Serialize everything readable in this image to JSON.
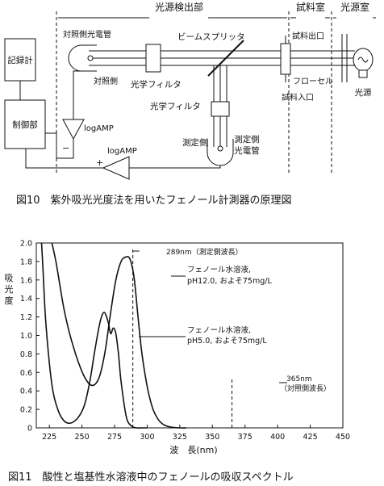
{
  "fig10": {
    "sections": [
      "光源検出部",
      "試料室",
      "光源室"
    ],
    "recorder": "記録計",
    "controller": "制御部",
    "ref_detector": "対照側光電管",
    "ref_side": "対照側",
    "beam_splitter": "ビームスプリッタ",
    "filter1": "光学フィルタ",
    "filter2": "光学フィルタ",
    "sample_outlet": "試料出口",
    "flow_cell": "フローセル",
    "sample_inlet": "試料入口",
    "light_source": "光源",
    "meas_side": "測定側",
    "meas_detector": [
      "測定側",
      "光電管"
    ],
    "amp1": "logAMP",
    "amp2": "logAMP",
    "minus": "−",
    "plus": "+",
    "caption": "図10　紫外吸光光度法を用いたフェノール計測器の原理図"
  },
  "fig11": {
    "caption": "図11　酸性と塩基性水溶液中のフェノールの吸収スペクトル",
    "ylabel": [
      "吸",
      "光",
      "度"
    ],
    "xlabel": "波　長(nm)",
    "ann_289": "289nm（測定側波長）",
    "ann_365": [
      "365nm",
      "（対照側波長）"
    ],
    "ann_ph12": [
      "フェノール水溶液,",
      "pH12.0, およそ75mg/L"
    ],
    "ann_ph5": [
      "フェノール水溶液,",
      "pH5.0, およそ75mg/L"
    ]
  },
  "chart_data": {
    "type": "line",
    "xlabel": "波　長(nm)",
    "ylabel": "吸光度",
    "xlim": [
      215,
      450
    ],
    "ylim": [
      0,
      2.0
    ],
    "xticks": [
      225,
      250,
      275,
      300,
      325,
      350,
      375,
      400,
      425,
      450
    ],
    "yticks": [
      0,
      0.2,
      0.4,
      0.6,
      0.8,
      1.0,
      1.2,
      1.4,
      1.6,
      1.8,
      2.0
    ],
    "series": [
      {
        "name": "フェノール水溶液, pH12.0, およそ75mg/L",
        "x": [
          227,
          230,
          233,
          236,
          240,
          244,
          248,
          252,
          256,
          260,
          264,
          268,
          272,
          276,
          280,
          284,
          287,
          290,
          293,
          296,
          300,
          304,
          308,
          312,
          316,
          320,
          325,
          330
        ],
        "y": [
          2.0,
          1.8,
          1.55,
          1.3,
          1.05,
          0.85,
          0.68,
          0.55,
          0.47,
          0.47,
          0.58,
          0.85,
          1.25,
          1.6,
          1.8,
          1.85,
          1.82,
          1.62,
          1.2,
          0.8,
          0.45,
          0.22,
          0.1,
          0.04,
          0.015,
          0.005,
          0.0,
          0.0
        ]
      },
      {
        "name": "フェノール水溶液, pH5.0, およそ75mg/L",
        "x": [
          219,
          220,
          222,
          225,
          228,
          232,
          236,
          240,
          244,
          248,
          252,
          256,
          260,
          264,
          267,
          270,
          272,
          274,
          276,
          278,
          280,
          284,
          288,
          292,
          296,
          300
        ],
        "y": [
          2.0,
          1.75,
          1.2,
          0.7,
          0.38,
          0.18,
          0.08,
          0.05,
          0.07,
          0.13,
          0.25,
          0.5,
          0.85,
          1.15,
          1.25,
          1.15,
          1.02,
          1.08,
          1.02,
          0.8,
          0.5,
          0.12,
          0.02,
          0.0,
          0.0,
          0.0
        ]
      }
    ],
    "markers": [
      {
        "x": 289,
        "label": "289nm（測定側波長）"
      },
      {
        "x": 365,
        "label": "365nm（対照側波長）"
      }
    ]
  }
}
